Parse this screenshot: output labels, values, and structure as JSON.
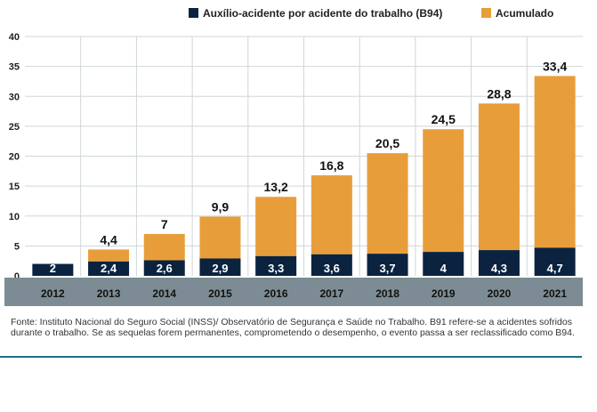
{
  "colors": {
    "b94": "#0c2340",
    "cumulative": "#e79e3a",
    "axis_band": "#7d8c94",
    "grid": "#cfd6da",
    "rule": "#1f6f86"
  },
  "legend": {
    "b94": "Auxílio-acidente por acidente do trabalho (B94)",
    "cumulative": "Acumulado"
  },
  "source_text": "Fonte: Instituto Nacional do Seguro Social (INSS)/ Observatório de Segurança e Saúde no Trabalho. B91 refere-se a acidentes sofridos durante o trabalho. Se as sequelas forem permanentes, comprometendo o desempenho, o evento passa a ser reclassificado como B94.",
  "chart_data": {
    "type": "bar",
    "stacked": true,
    "categories": [
      "2012",
      "2013",
      "2014",
      "2015",
      "2016",
      "2017",
      "2018",
      "2019",
      "2020",
      "2021"
    ],
    "series": [
      {
        "name": "Auxílio-acidente por acidente do trabalho (B94)",
        "values": [
          2,
          2.4,
          2.6,
          2.9,
          3.3,
          3.6,
          3.7,
          4,
          4.3,
          4.7
        ]
      },
      {
        "name": "Acumulado",
        "values": [
          0,
          4.4,
          7,
          9.9,
          13.2,
          16.8,
          20.5,
          24.5,
          28.8,
          33.4
        ]
      }
    ],
    "labels": {
      "b94": [
        "2",
        "2,4",
        "2,6",
        "2,9",
        "3,3",
        "3,6",
        "3,7",
        "4",
        "4,3",
        "4,7"
      ],
      "cumulative": [
        "",
        "4,4",
        "7",
        "9,9",
        "13,2",
        "16,8",
        "20,5",
        "24,5",
        "28,8",
        "33,4"
      ]
    },
    "yticks": [
      "0",
      "5",
      "10",
      "15",
      "20",
      "25",
      "30",
      "35",
      "40"
    ],
    "ylim": [
      0,
      40
    ],
    "grid": true,
    "legend_position": "top-right"
  }
}
